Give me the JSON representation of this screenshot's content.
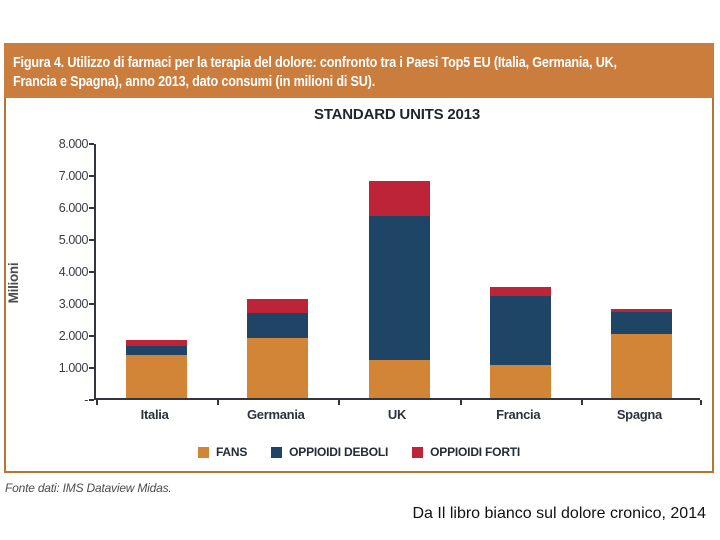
{
  "figure": {
    "title_line1": "Figura 4. Utilizzo di farmaci per la terapia del dolore: confronto tra i Paesi Top5 EU (Italia, Germania, UK,",
    "title_line2": "Francia e Spagna), anno 2013, dato consumi (in milioni di SU).",
    "source_note": "Fonte dati: IMS Dataview Midas.",
    "colors": {
      "title_bar_bg": "#cb7d3d",
      "panel_border": "#b5772f",
      "axis": "#33373d",
      "fans": "#d28536",
      "oppioidi_deboli": "#1e4466",
      "oppioidi_forti": "#be2438"
    }
  },
  "caption": "Da Il libro bianco sul dolore cronico, 2014",
  "chart_data": {
    "type": "bar",
    "stacked": true,
    "title": "STANDARD UNITS 2013",
    "ylabel": "Milioni",
    "xlabel": "",
    "ylim": [
      0,
      8000
    ],
    "grid": false,
    "legend_position": "bottom",
    "categories": [
      "Italia",
      "Germania",
      "UK",
      "Francia",
      "Spagna"
    ],
    "series": [
      {
        "name": "FANS",
        "color": "#d28536",
        "values": [
          1330,
          1870,
          1180,
          1030,
          2010
        ]
      },
      {
        "name": "OPPIOIDI DEBOLI",
        "color": "#1e4466",
        "values": [
          290,
          780,
          4520,
          2160,
          690
        ]
      },
      {
        "name": "OPPIOIDI FORTI",
        "color": "#be2438",
        "values": [
          190,
          440,
          1090,
          280,
          90
        ]
      }
    ],
    "totals": [
      1810,
      3090,
      6790,
      3470,
      2790
    ],
    "y_tick_labels": [
      "8.000",
      "7.000",
      "6.000",
      "5.000",
      "4.000",
      "3.000",
      "2.000",
      "1.000",
      "-"
    ]
  }
}
